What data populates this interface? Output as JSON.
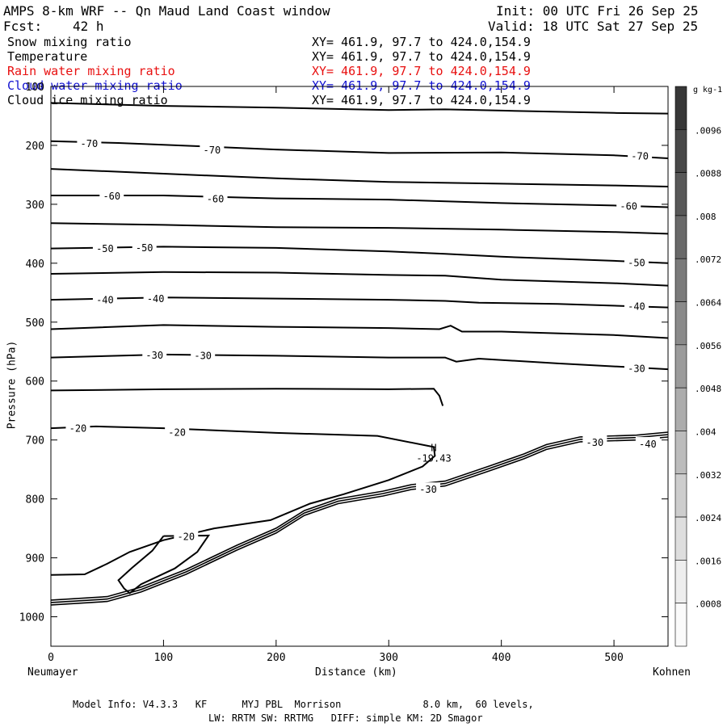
{
  "header": {
    "title": "AMPS 8-km WRF -- Qn Maud Land Coast window",
    "init": "Init: 00 UTC Fri 26 Sep 25",
    "fcst_label": "Fcst:",
    "fcst_value": "42 h",
    "valid": "Valid: 18 UTC Sat 27 Sep 25"
  },
  "legend": [
    {
      "name": "Snow mixing ratio",
      "xy": "XY= 461.9, 97.7 to 424.0,154.9",
      "color": "#000000"
    },
    {
      "name": "Temperature",
      "xy": "XY= 461.9, 97.7 to 424.0,154.9",
      "color": "#000000"
    },
    {
      "name": "Rain water mixing ratio",
      "xy": "XY= 461.9, 97.7 to 424.0,154.9",
      "color": "#e81010"
    },
    {
      "name": "Cloud water mixing ratio",
      "xy": "XY= 461.9, 97.7 to 424.0,154.9",
      "color": "#1010d0"
    },
    {
      "name": "Cloud ice mixing ratio",
      "xy": "XY= 461.9, 97.7 to 424.0,154.9",
      "color": "#000000"
    }
  ],
  "chart_data": {
    "type": "line",
    "subtype": "vertical cross-section contour",
    "variable": "Temperature",
    "xlabel": "Distance (km)",
    "ylabel": "Pressure (hPa)",
    "xlim": [
      0,
      548
    ],
    "ylim": [
      1050,
      100
    ],
    "x_ticks": [
      0,
      100,
      200,
      300,
      400,
      500
    ],
    "y_ticks": [
      100,
      200,
      300,
      400,
      500,
      600,
      700,
      800,
      900,
      1000
    ],
    "left_endpoint": "Neumayer",
    "right_endpoint": "Kohnen",
    "contours": [
      {
        "level": -75,
        "points": [
          [
            0,
            128
          ],
          [
            100,
            133
          ],
          [
            200,
            136
          ],
          [
            300,
            140
          ],
          [
            350,
            139
          ],
          [
            400,
            141
          ],
          [
            500,
            145
          ],
          [
            548,
            146
          ]
        ]
      },
      {
        "level": -70,
        "points": [
          [
            0,
            193
          ],
          [
            60,
            196
          ],
          [
            100,
            199
          ],
          [
            200,
            207
          ],
          [
            300,
            213
          ],
          [
            400,
            212
          ],
          [
            500,
            217
          ],
          [
            548,
            222
          ]
        ]
      },
      {
        "level": -65,
        "points": [
          [
            0,
            240
          ],
          [
            100,
            248
          ],
          [
            200,
            256
          ],
          [
            300,
            262
          ],
          [
            400,
            265
          ],
          [
            500,
            268
          ],
          [
            548,
            270
          ]
        ]
      },
      {
        "level": -60,
        "points": [
          [
            0,
            285
          ],
          [
            100,
            285
          ],
          [
            200,
            290
          ],
          [
            300,
            292
          ],
          [
            400,
            298
          ],
          [
            500,
            302
          ],
          [
            548,
            305
          ]
        ]
      },
      {
        "level": -55,
        "points": [
          [
            0,
            332
          ],
          [
            100,
            335
          ],
          [
            200,
            339
          ],
          [
            300,
            340
          ],
          [
            400,
            343
          ],
          [
            500,
            347
          ],
          [
            548,
            350
          ]
        ]
      },
      {
        "level": -50,
        "points": [
          [
            0,
            375
          ],
          [
            100,
            372
          ],
          [
            200,
            374
          ],
          [
            300,
            380
          ],
          [
            350,
            384
          ],
          [
            400,
            389
          ],
          [
            500,
            396
          ],
          [
            548,
            400
          ]
        ]
      },
      {
        "level": -45,
        "points": [
          [
            0,
            418
          ],
          [
            100,
            415
          ],
          [
            200,
            416
          ],
          [
            300,
            420
          ],
          [
            350,
            421
          ],
          [
            400,
            428
          ],
          [
            500,
            434
          ],
          [
            548,
            438
          ]
        ]
      },
      {
        "level": -40,
        "points": [
          [
            0,
            462
          ],
          [
            100,
            458
          ],
          [
            200,
            460
          ],
          [
            300,
            462
          ],
          [
            350,
            464
          ],
          [
            380,
            467
          ],
          [
            450,
            469
          ],
          [
            548,
            475
          ]
        ]
      },
      {
        "level": -35,
        "points": [
          [
            0,
            512
          ],
          [
            100,
            505
          ],
          [
            200,
            508
          ],
          [
            300,
            510
          ],
          [
            345,
            512
          ],
          [
            355,
            506
          ],
          [
            365,
            516
          ],
          [
            400,
            516
          ],
          [
            500,
            522
          ],
          [
            548,
            527
          ]
        ]
      },
      {
        "level": -30,
        "points": [
          [
            0,
            560
          ],
          [
            100,
            555
          ],
          [
            200,
            557
          ],
          [
            300,
            560
          ],
          [
            350,
            560
          ],
          [
            360,
            567
          ],
          [
            380,
            562
          ],
          [
            450,
            570
          ],
          [
            548,
            580
          ]
        ]
      },
      {
        "level": -25,
        "points": [
          [
            0,
            616
          ],
          [
            100,
            614
          ],
          [
            200,
            613
          ],
          [
            300,
            614
          ],
          [
            340,
            613
          ],
          [
            345,
            625
          ],
          [
            348,
            642
          ]
        ]
      },
      {
        "level": -20,
        "points": [
          [
            0,
            680
          ],
          [
            40,
            677
          ],
          [
            100,
            680
          ],
          [
            200,
            688
          ],
          [
            290,
            693
          ],
          [
            340,
            712
          ],
          [
            341,
            727
          ],
          [
            330,
            745
          ],
          [
            300,
            768
          ],
          [
            260,
            792
          ],
          [
            230,
            808
          ],
          [
            195,
            836
          ],
          [
            145,
            850
          ],
          [
            100,
            870
          ],
          [
            70,
            890
          ],
          [
            50,
            910
          ],
          [
            30,
            928
          ],
          [
            0,
            929
          ]
        ]
      },
      {
        "level": -20,
        "points": [
          [
            100,
            863
          ],
          [
            140,
            862
          ],
          [
            130,
            890
          ],
          [
            110,
            918
          ],
          [
            80,
            945
          ],
          [
            70,
            960
          ],
          [
            65,
            952
          ],
          [
            60,
            938
          ],
          [
            72,
            917
          ],
          [
            90,
            888
          ],
          [
            100,
            863
          ]
        ]
      }
    ],
    "terrain_points": [
      [
        0,
        980
      ],
      [
        50,
        974
      ],
      [
        80,
        958
      ],
      [
        120,
        928
      ],
      [
        165,
        887
      ],
      [
        200,
        858
      ],
      [
        225,
        828
      ],
      [
        255,
        808
      ],
      [
        295,
        795
      ],
      [
        320,
        784
      ],
      [
        350,
        778
      ],
      [
        390,
        752
      ],
      [
        420,
        732
      ],
      [
        440,
        716
      ],
      [
        470,
        703
      ],
      [
        520,
        700
      ],
      [
        548,
        695
      ]
    ],
    "annotations": [
      {
        "label": "H",
        "x": 340,
        "p": 712
      },
      {
        "label": "-19.43",
        "x": 340,
        "p": 730
      }
    ],
    "contour_labels": [
      {
        "text": "-70",
        "x": 34,
        "p": 196
      },
      {
        "text": "-70",
        "x": 143,
        "p": 207
      },
      {
        "text": "-70",
        "x": 523,
        "p": 217
      },
      {
        "text": "-60",
        "x": 54,
        "p": 285
      },
      {
        "text": "-60",
        "x": 146,
        "p": 290
      },
      {
        "text": "-60",
        "x": 513,
        "p": 302
      },
      {
        "text": "-50",
        "x": 48,
        "p": 374
      },
      {
        "text": "-50",
        "x": 83,
        "p": 373
      },
      {
        "text": "-50",
        "x": 520,
        "p": 398
      },
      {
        "text": "-40",
        "x": 48,
        "p": 461
      },
      {
        "text": "-40",
        "x": 93,
        "p": 459
      },
      {
        "text": "-40",
        "x": 520,
        "p": 472
      },
      {
        "text": "-30",
        "x": 92,
        "p": 555
      },
      {
        "text": "-30",
        "x": 135,
        "p": 556
      },
      {
        "text": "-30",
        "x": 520,
        "p": 578
      },
      {
        "text": "-30",
        "x": 483,
        "p": 703
      },
      {
        "text": "-40",
        "x": 530,
        "p": 706
      },
      {
        "text": "-30",
        "x": 335,
        "p": 783
      },
      {
        "text": "-20",
        "x": 24,
        "p": 679
      },
      {
        "text": "-20",
        "x": 112,
        "p": 686
      },
      {
        "text": "-20",
        "x": 120,
        "p": 863
      }
    ],
    "colorbar": {
      "unit": "g kg-1",
      "levels": [
        ".0096",
        ".0088",
        ".008",
        ".0072",
        ".0064",
        ".0056",
        ".0048",
        ".004",
        ".0032",
        ".0024",
        ".0016",
        ".0008"
      ]
    }
  },
  "axis": {
    "ylabel": "Pressure (hPa)",
    "xlabel": "Distance (km)",
    "left_station": "Neumayer",
    "right_station": "Kohnen"
  },
  "footer": {
    "line1": "Model Info: V4.3.3   KF      MYJ PBL  Morrison              8.0 km,  60 levels,",
    "line2": "LW: RRTM SW: RRTMG   DIFF: simple KM: 2D Smagor"
  }
}
